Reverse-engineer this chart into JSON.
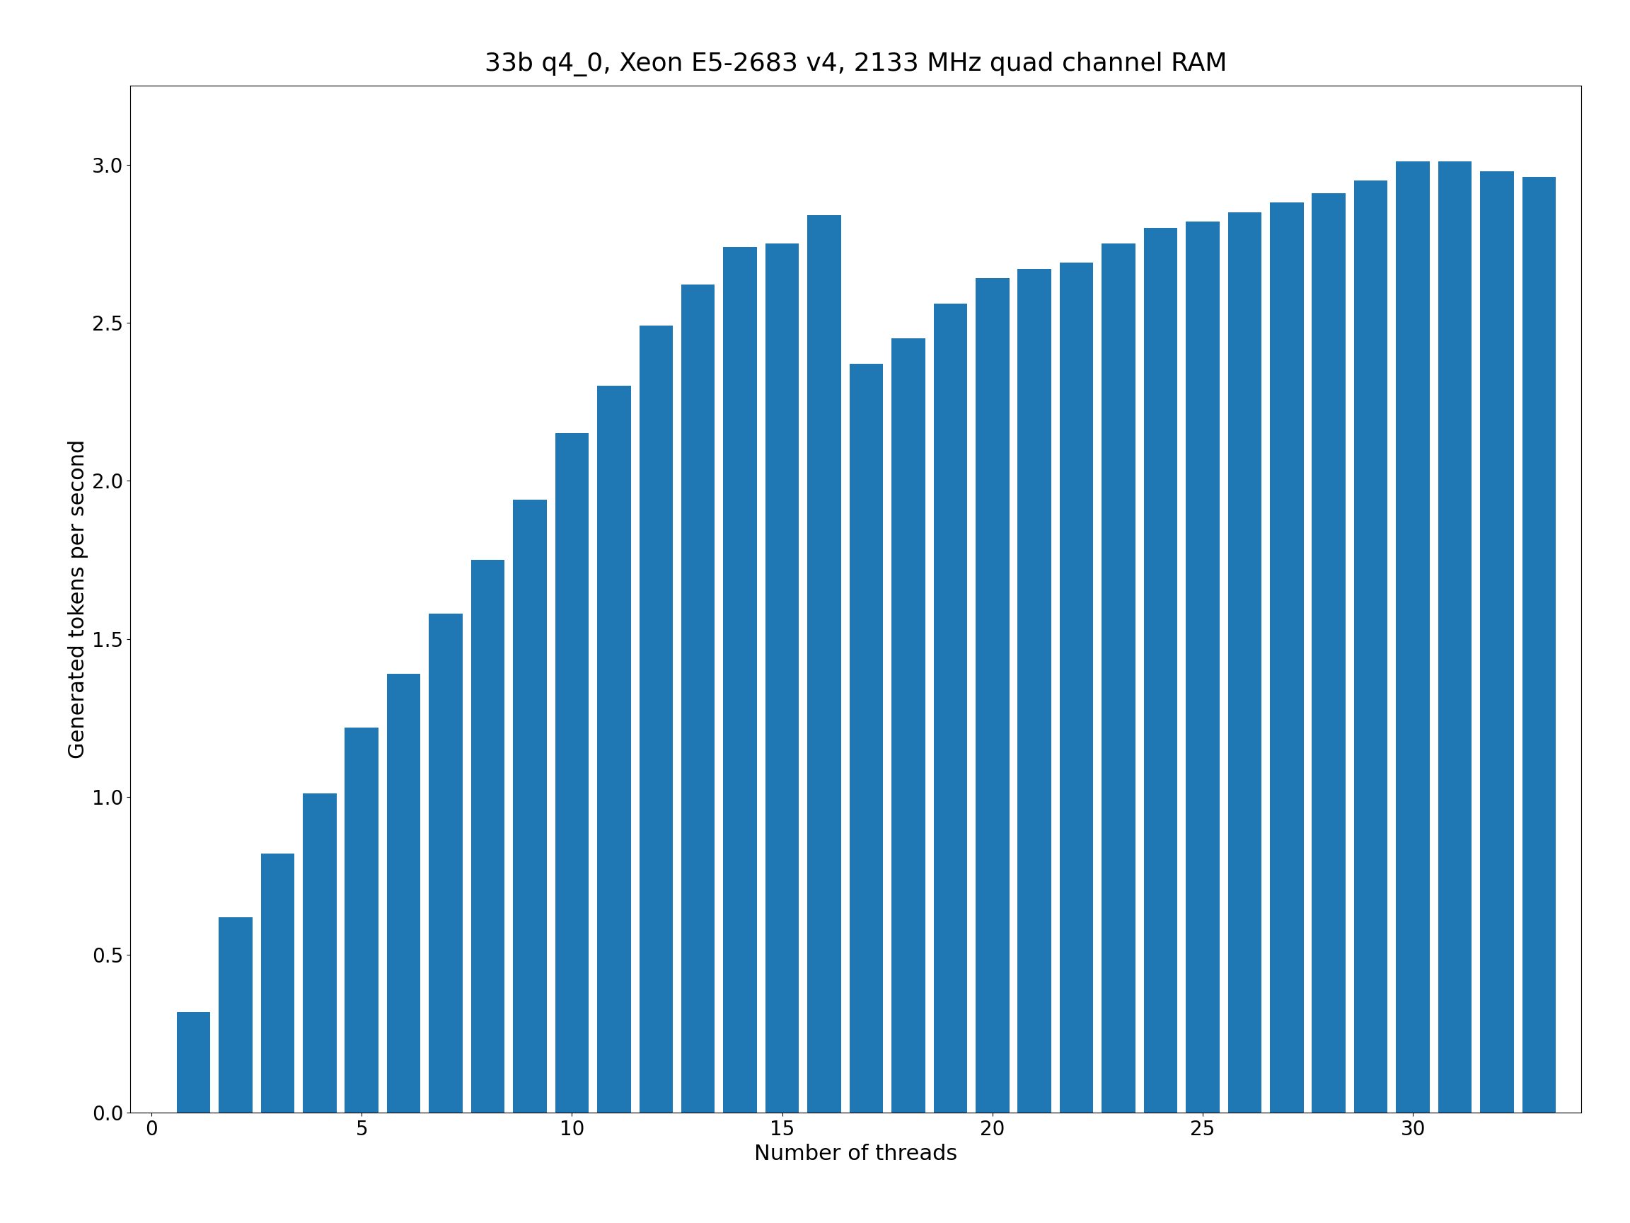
{
  "title": "33b q4_0, Xeon E5-2683 v4, 2133 MHz quad channel RAM",
  "xlabel": "Number of threads",
  "ylabel": "Generated tokens per second",
  "bar_color": "#1f77b4",
  "values": [
    0.32,
    0.62,
    0.82,
    1.01,
    1.22,
    1.39,
    1.58,
    1.75,
    1.94,
    2.15,
    2.3,
    2.49,
    2.62,
    2.74,
    2.75,
    2.84,
    2.37,
    2.45,
    2.56,
    2.64,
    2.67,
    2.69,
    2.75,
    2.8,
    2.82,
    2.85,
    2.88,
    2.91,
    2.95,
    3.01,
    3.01,
    2.98,
    2.96
  ],
  "threads": [
    1,
    2,
    3,
    4,
    5,
    6,
    7,
    8,
    9,
    10,
    11,
    12,
    13,
    14,
    15,
    16,
    17,
    18,
    19,
    20,
    21,
    22,
    23,
    24,
    25,
    26,
    27,
    28,
    29,
    30,
    31,
    32,
    33
  ],
  "ylim": [
    0,
    3.25
  ],
  "xlim": [
    -0.5,
    34
  ],
  "xticks": [
    0,
    5,
    10,
    15,
    20,
    25,
    30
  ],
  "yticks": [
    0.0,
    0.5,
    1.0,
    1.5,
    2.0,
    2.5,
    3.0
  ],
  "title_fontsize": 26,
  "label_fontsize": 22,
  "tick_fontsize": 20,
  "background_color": "#ffffff"
}
